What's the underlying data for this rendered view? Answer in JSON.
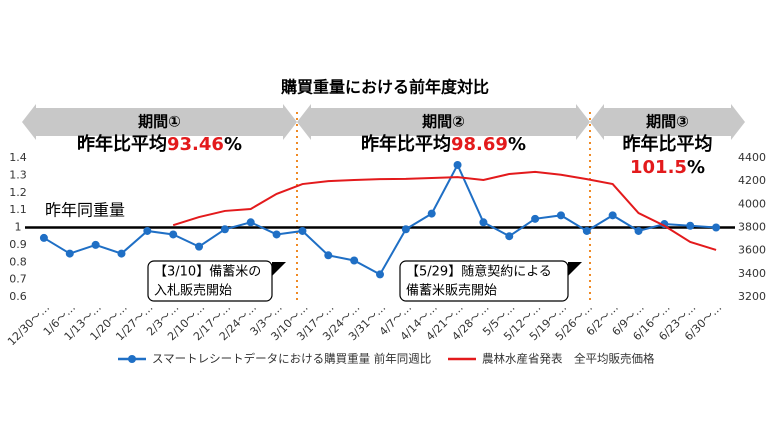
{
  "chart_data": {
    "type": "line",
    "title": "購買重量における前年度対比",
    "categories": [
      "12/30〜…",
      "1/6〜…",
      "1/13〜…",
      "1/20〜…",
      "1/27〜…",
      "2/3〜…",
      "2/10〜…",
      "2/17〜…",
      "2/24〜…",
      "3/3〜…",
      "3/10〜…",
      "3/17〜…",
      "3/24〜…",
      "3/31〜…",
      "4/7〜…",
      "4/14〜…",
      "4/21〜…",
      "4/28〜…",
      "5/5〜…",
      "5/12〜…",
      "5/19〜…",
      "5/26〜…",
      "6/2〜…",
      "6/9〜…",
      "6/16〜…",
      "6/23〜…",
      "6/30〜…"
    ],
    "series": [
      {
        "name": "スマートレシートデータにおける購買重量 前年同週比",
        "color": "#1f6fc5",
        "axis": "y",
        "values": [
          0.94,
          0.85,
          0.9,
          0.85,
          0.98,
          0.96,
          0.89,
          0.99,
          1.03,
          0.96,
          0.98,
          0.84,
          0.81,
          0.73,
          0.99,
          1.08,
          1.36,
          1.03,
          0.95,
          1.05,
          1.07,
          0.98,
          1.07,
          0.98,
          1.02,
          1.01,
          1.0
        ]
      },
      {
        "name": "農林水産省発表　全平均販売価格",
        "color": "#e31a1c",
        "axis": "y2",
        "values": [
          null,
          null,
          null,
          null,
          null,
          3820,
          3890,
          3943,
          3960,
          4090,
          4175,
          4200,
          4210,
          4218,
          4220,
          4227,
          4235,
          4210,
          4262,
          4280,
          4255,
          4218,
          4175,
          3925,
          3815,
          3675,
          3606
        ]
      }
    ],
    "ylim": [
      0.6,
      1.4
    ],
    "yticks": [
      0.6,
      0.7,
      0.8,
      0.9,
      1,
      1.1,
      1.2,
      1.3,
      1.4
    ],
    "y2lim": [
      3200,
      4400
    ],
    "y2ticks": [
      3200,
      3400,
      3600,
      3800,
      4000,
      4200,
      4400
    ],
    "reference_line": 1,
    "reference_label": "昨年同重量",
    "periods": [
      {
        "label": "期間①",
        "avg_text": "昨年比平均",
        "avg_value": 93.46,
        "unit": "%"
      },
      {
        "label": "期間②",
        "avg_text": "昨年比平均",
        "avg_value": 98.69,
        "unit": "%"
      },
      {
        "label": "期間③",
        "avg_text": "昨年比平均",
        "avg_value": 101.5,
        "unit": "%"
      }
    ],
    "annotations": [
      {
        "line1": "【3/10】備蓄米の",
        "line2": "入札販売開始"
      },
      {
        "line1": "【5/29】随意契約による",
        "line2": "備蓄米販売開始"
      }
    ]
  }
}
